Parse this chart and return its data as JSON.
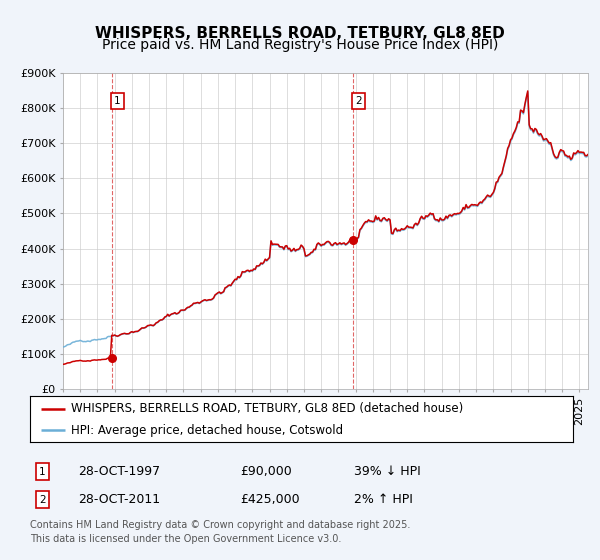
{
  "title": "WHISPERS, BERRELLS ROAD, TETBURY, GL8 8ED",
  "subtitle": "Price paid vs. HM Land Registry's House Price Index (HPI)",
  "ylim": [
    0,
    900000
  ],
  "yticks": [
    0,
    100000,
    200000,
    300000,
    400000,
    500000,
    600000,
    700000,
    800000,
    900000
  ],
  "ytick_labels": [
    "£0",
    "£100K",
    "£200K",
    "£300K",
    "£400K",
    "£500K",
    "£600K",
    "£700K",
    "£800K",
    "£900K"
  ],
  "xlim_start": 1995.0,
  "xlim_end": 2025.5,
  "hpi_color": "#6baed6",
  "price_color": "#cc0000",
  "marker_color": "#cc0000",
  "sale1_x": 1997.83,
  "sale1_y": 90000,
  "sale1_label": "1",
  "sale1_date": "28-OCT-1997",
  "sale1_price": "£90,000",
  "sale1_hpi": "39% ↓ HPI",
  "sale2_x": 2011.83,
  "sale2_y": 425000,
  "sale2_label": "2",
  "sale2_date": "28-OCT-2011",
  "sale2_price": "£425,000",
  "sale2_hpi": "2% ↑ HPI",
  "vline1_x": 1997.83,
  "vline2_x": 2011.83,
  "legend_label1": "WHISPERS, BERRELLS ROAD, TETBURY, GL8 8ED (detached house)",
  "legend_label2": "HPI: Average price, detached house, Cotswold",
  "footnote": "Contains HM Land Registry data © Crown copyright and database right 2025.\nThis data is licensed under the Open Government Licence v3.0.",
  "bg_color": "#f0f4fa",
  "plot_bg_color": "#ffffff",
  "title_fontsize": 11,
  "subtitle_fontsize": 10,
  "tick_fontsize": 8,
  "legend_fontsize": 8.5,
  "annotation_fontsize": 9,
  "footnote_fontsize": 7
}
